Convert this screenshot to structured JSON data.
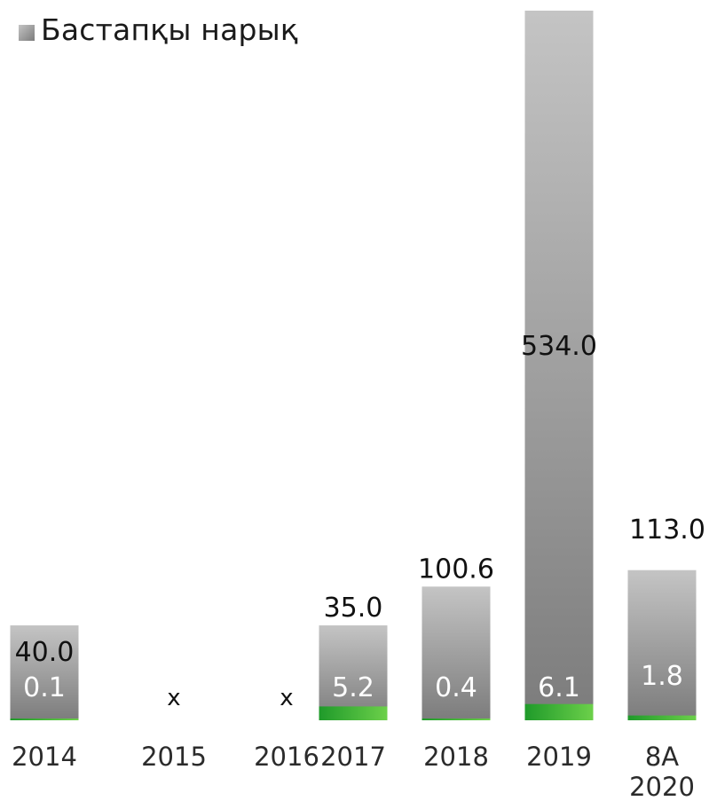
{
  "chart_data": {
    "type": "bar",
    "legend": {
      "label": "Бастапқы нарық",
      "position": "top-left"
    },
    "categories": [
      "2014",
      "2015",
      "2016",
      "2017",
      "2018",
      "2019",
      "8А 2020"
    ],
    "series": [
      {
        "name": "Бастапқы нарық",
        "values": [
          40.0,
          null,
          null,
          35.0,
          100.6,
          534.0,
          113.0
        ]
      },
      {
        "values": [
          0.1,
          null,
          null,
          5.2,
          0.4,
          6.1,
          1.8
        ]
      }
    ],
    "total_labels": [
      "40.0",
      "x",
      "x",
      "35.0",
      "100.6",
      "534.0",
      "113.0"
    ],
    "secondary_labels": [
      "0.1",
      "",
      "",
      "5.2",
      "0.4",
      "6.1",
      "1.8"
    ],
    "missing_marker": "x",
    "colors": {
      "bar_light": "#c4c4c4",
      "bar_dark": "#7c7c7c",
      "green_light": "#6cd04a",
      "green_dark": "#1f9a2a",
      "label_dark": "#111111",
      "label_light": "#ffffff",
      "tick_label": "#2b2b2b"
    }
  }
}
